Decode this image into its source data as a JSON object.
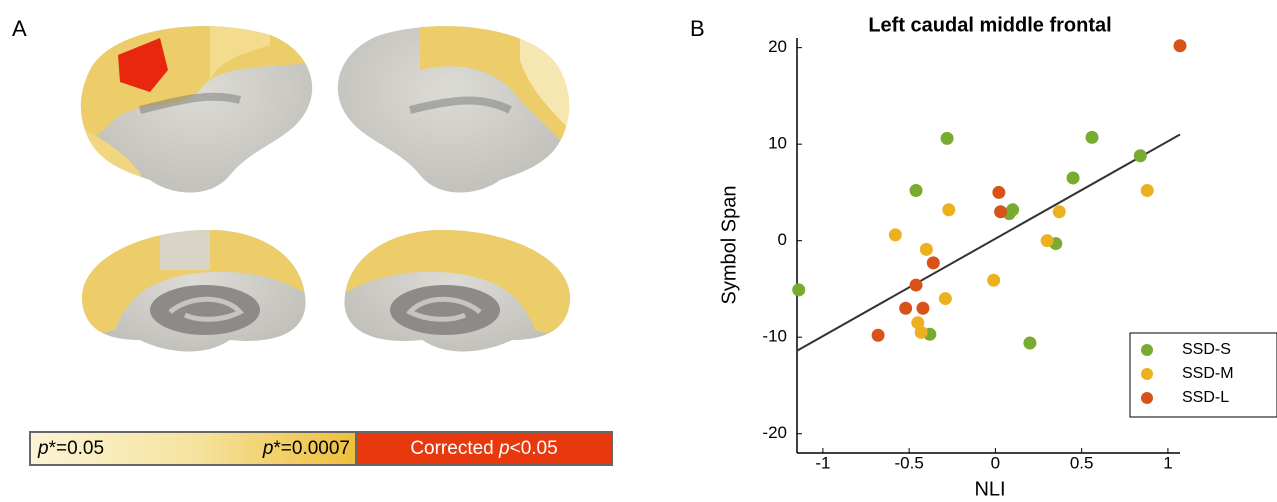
{
  "figure": {
    "panel_a": "A",
    "panel_b": "B",
    "colorbar": {
      "low": [
        "p",
        "*=0.05"
      ],
      "high": [
        "p",
        "*=0.0007"
      ],
      "corrected": [
        "Corrected ",
        "p",
        "<0.05"
      ]
    }
  },
  "chart_data": {
    "type": "scatter",
    "title": "Left caudal middle frontal",
    "xlabel": "NLI",
    "ylabel": "Symbol Span",
    "xlim": [
      -1.15,
      1.07
    ],
    "ylim": [
      -22,
      21
    ],
    "xticks": [
      -1,
      -0.5,
      0,
      0.5,
      1
    ],
    "yticks": [
      -20,
      -10,
      0,
      10,
      20
    ],
    "legend": "lower right",
    "series": [
      {
        "name": "SSD-S",
        "color": "#77ac30",
        "x": [
          -1.14,
          -0.28,
          -0.46,
          0.1,
          0.08,
          0.35,
          0.45,
          0.56,
          0.84,
          0.2,
          -0.38
        ],
        "values": [
          -5.1,
          10.6,
          5.2,
          3.2,
          2.8,
          -0.3,
          6.5,
          10.7,
          8.8,
          -10.6,
          -9.7
        ]
      },
      {
        "name": "SSD-M",
        "color": "#edb120",
        "x": [
          -0.58,
          -0.27,
          -0.4,
          -0.01,
          -0.29,
          -0.45,
          -0.43,
          0.3,
          0.37,
          0.88
        ],
        "values": [
          0.6,
          3.2,
          -0.9,
          -4.1,
          -6.0,
          -8.5,
          -9.5,
          0.0,
          3.0,
          5.2
        ]
      },
      {
        "name": "SSD-L",
        "color": "#d95319",
        "x": [
          1.07,
          0.02,
          0.03,
          -0.36,
          -0.46,
          -0.52,
          -0.42,
          -0.68
        ],
        "values": [
          20.2,
          5.0,
          3.0,
          -2.3,
          -4.6,
          -7.0,
          -7.0,
          -9.8
        ]
      }
    ],
    "fit": {
      "color": "#333333",
      "x": [
        -1.15,
        1.07
      ],
      "values": [
        -11.4,
        11.0
      ]
    }
  }
}
